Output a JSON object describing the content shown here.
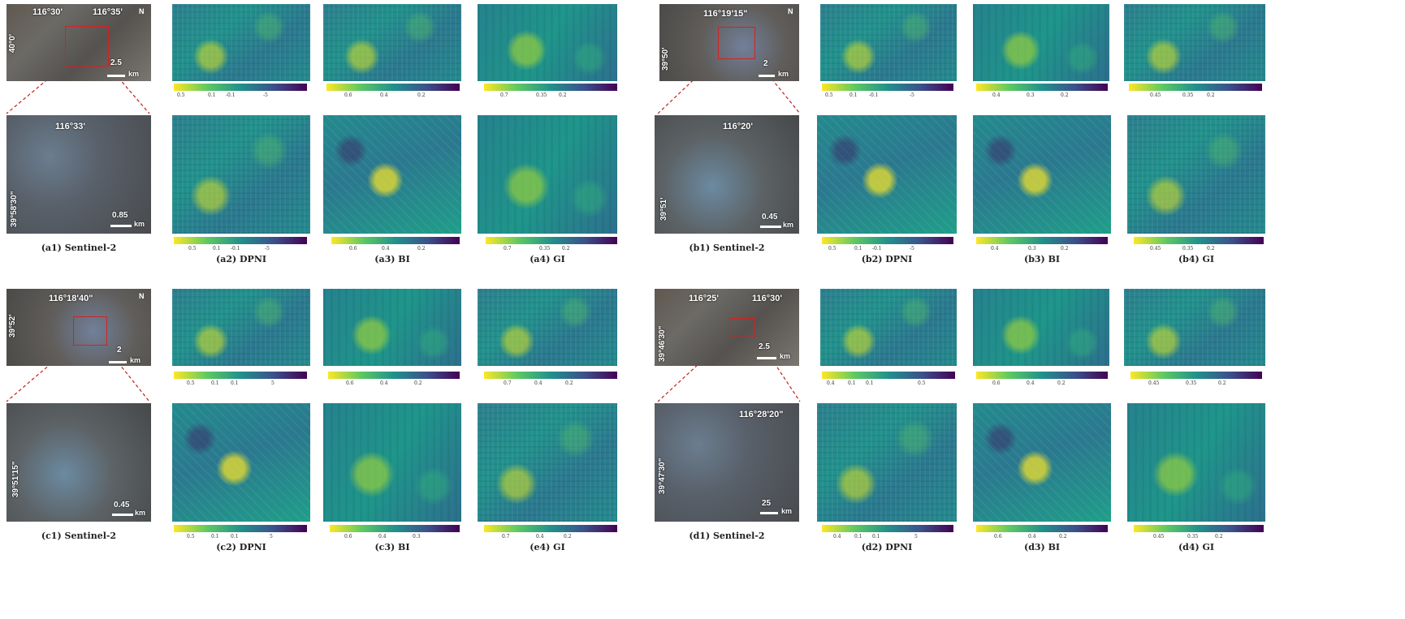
{
  "a": {
    "coord_top_left": "116°30'",
    "coord_top_right": "116°35'",
    "coord_top_vertical": "40°0'",
    "scale_top": "2.5",
    "unit": "km",
    "north": "N",
    "coord_bottom_top": "116°33'",
    "coord_bottom_vertical": "39°58'30\"",
    "scale_bottom": "0.85",
    "captions": [
      "(a1) Sentinel-2",
      "(a2) DPNI",
      "(a3) BI",
      "(a4) GI"
    ],
    "ticks_top": {
      "dpni": [
        "0.5",
        "0.1",
        "-0.1",
        "-5"
      ],
      "bi": [
        "0.6",
        "0.4",
        "0.2"
      ],
      "gi": [
        "0.7",
        "0.35",
        "0.2"
      ]
    },
    "ticks_bottom": {
      "dpni": [
        "0.5",
        "0.1",
        "-0.1",
        "-5"
      ],
      "bi": [
        "0.6",
        "0.4",
        "0.2"
      ],
      "gi": [
        "0.7",
        "0.35",
        "0.2"
      ]
    }
  },
  "b": {
    "coord_top": "116°19'15\"",
    "coord_top_vertical": "39°50'",
    "scale_top": "2",
    "unit": "km",
    "north": "N",
    "coord_bottom_top": "116°20'",
    "coord_bottom_vertical": "39°51'",
    "scale_bottom": "0.45",
    "captions": [
      "(b1) Sentinel-2",
      "(b2) DPNI",
      "(b3) BI",
      "(b4) GI"
    ],
    "ticks_top": {
      "dpni": [
        "0.5",
        "0.1",
        "-0.1",
        "-5"
      ],
      "bi": [
        "0.4",
        "0.3",
        "0.2"
      ],
      "gi": [
        "0.45",
        "0.35",
        "0.2"
      ]
    },
    "ticks_bottom": {
      "dpni": [
        "0.5",
        "0.1",
        "-0.1",
        "-5"
      ],
      "bi": [
        "0.4",
        "0.3",
        "0.2"
      ],
      "gi": [
        "0.45",
        "0.35",
        "0.2"
      ]
    }
  },
  "c": {
    "coord_top": "116°18'40\"",
    "coord_top_vertical": "39°52'",
    "scale_top": "2",
    "unit": "km",
    "north": "N",
    "coord_bottom_vertical": "39°51'15\"",
    "scale_bottom": "0.45",
    "captions": [
      "(c1) Sentinel-2",
      "(c2) DPNI",
      "(c3) BI",
      "(e4) GI"
    ],
    "ticks_top": {
      "dpni": [
        "0.5",
        "0.1",
        "0.1",
        "5"
      ],
      "bi": [
        "0.6",
        "0.4",
        "0.2"
      ],
      "gi": [
        "0.7",
        "0.4",
        "0.2"
      ]
    },
    "ticks_bottom": {
      "dpni": [
        "0.5",
        "0.1",
        "0.1",
        "5"
      ],
      "bi": [
        "0.6",
        "0.4",
        "0.3"
      ],
      "gi": [
        "0.7",
        "0.4",
        "0.2"
      ]
    }
  },
  "d": {
    "coord_top_left": "116°25'",
    "coord_top_right": "116°30'",
    "coord_top_vertical": "39°46'30\"",
    "scale_top": "2.5",
    "unit": "km",
    "coord_bottom_top": "116°28'20\"",
    "coord_bottom_vertical": "39°47'30\"",
    "scale_bottom": "25",
    "captions": [
      "(d1) Sentinel-2",
      "(d2) DPNI",
      "(d3) BI",
      "(d4) GI"
    ],
    "ticks_top": {
      "dpni": [
        "0.4",
        "0.1",
        "0.1",
        "0.5"
      ],
      "bi": [
        "0.6",
        "0.4",
        "0.2"
      ],
      "gi": [
        "0.45",
        "0.35",
        "0.2"
      ]
    },
    "ticks_bottom": {
      "dpni": [
        "0.4",
        "0.1",
        "0.1",
        "5"
      ],
      "bi": [
        "0.6",
        "0.4",
        "0.2"
      ],
      "gi": [
        "0.45",
        "0.35",
        "0.2"
      ]
    }
  },
  "colormap": [
    "#fde725",
    "#5ec962",
    "#21918c",
    "#3b528b",
    "#440154"
  ],
  "highlight_color": "#d62020"
}
